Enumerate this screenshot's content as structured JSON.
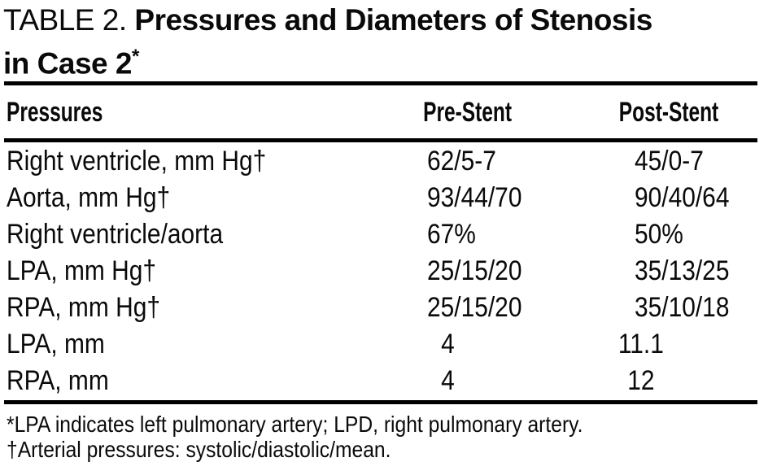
{
  "colors": {
    "background": "#ffffff",
    "text": "#0a0a0a",
    "rule": "#000000"
  },
  "table": {
    "label": "TABLE 2.",
    "title_line1": "Pressures and Diameters of Stenosis",
    "title_line2": "in Case 2",
    "title_footnote_marker": "*",
    "columns": {
      "rowhead": "Pressures",
      "pre": "Pre-Stent",
      "post": "Post-Stent"
    },
    "rows": [
      {
        "kind": "pressure",
        "label": "Right ventricle, mm Hg†",
        "pre": "62/5-7",
        "post": "45/0-7"
      },
      {
        "kind": "pressure",
        "label": "Aorta, mm Hg†",
        "pre": "93/44/70",
        "post": "90/40/64"
      },
      {
        "kind": "pressure",
        "label": "Right ventricle/aorta",
        "pre": "67%",
        "post": "50%"
      },
      {
        "kind": "pressure",
        "label": "LPA, mm Hg†",
        "pre": "25/15/20",
        "post": "35/13/25"
      },
      {
        "kind": "pressure",
        "label": "RPA, mm Hg†",
        "pre": "25/15/20",
        "post": "35/10/18"
      },
      {
        "kind": "diameter",
        "label": "LPA, mm",
        "pre": "4",
        "post": "11.1"
      },
      {
        "kind": "diameter",
        "label": "RPA, mm",
        "pre": "4",
        "post": "12"
      }
    ],
    "footnotes": [
      "*LPA indicates left pulmonary artery; LPD, right pulmonary artery.",
      "†Arterial pressures: systolic/diastolic/mean."
    ]
  }
}
